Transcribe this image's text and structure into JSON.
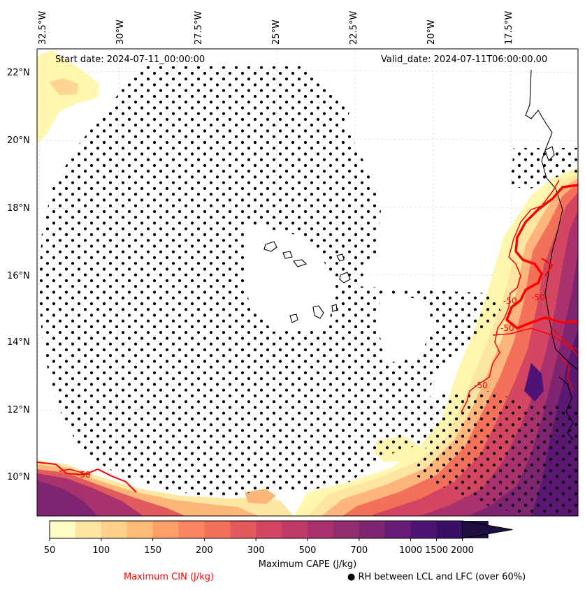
{
  "map": {
    "start_date": "Start date: 2024-07-11_00:00:00",
    "valid_date": "Valid_date: 2024-07-11T06:00:00.00",
    "lon_labels": [
      "32.5°W",
      "30°W",
      "27.5°W",
      "25°W",
      "22.5°W",
      "20°W",
      "17.5°W"
    ],
    "lat_labels": [
      "22°N",
      "20°N",
      "18°N",
      "16°N",
      "14°N",
      "12°N",
      "10°N"
    ],
    "contour_label": "-50"
  },
  "colorbar": {
    "label": "Maximum CAPE (J/kg)",
    "ticks": [
      "50",
      "100",
      "150",
      "200",
      "300",
      "500",
      "700",
      "1000",
      "1500",
      "2000"
    ],
    "colors": [
      "#fffcc4",
      "#fee5a2",
      "#fecf8a",
      "#febb78",
      "#fd9f6b",
      "#fb8760",
      "#f3705b",
      "#e4595c",
      "#d34560",
      "#c13b67",
      "#a9316d",
      "#942c70",
      "#7e2471",
      "#661c74",
      "#4e1374",
      "#380f64",
      "#1f0e40"
    ]
  },
  "legend": {
    "cin": "Maximum CIN (J/kg)",
    "rh": "● RH between LCL and LFC (over 60%)"
  }
}
